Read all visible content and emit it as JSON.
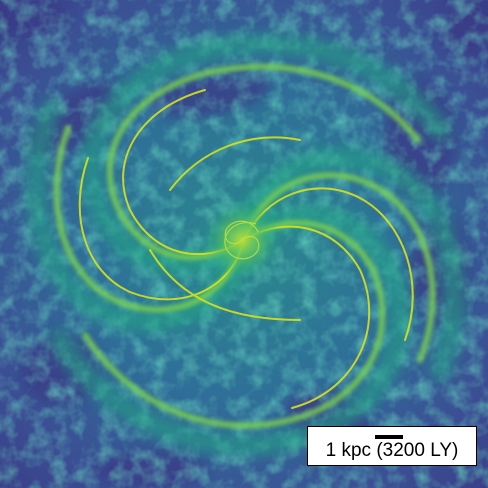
{
  "image": {
    "subject": "spiral-galaxy-gas-density-map",
    "colormap": [
      "#3b2f7e",
      "#3d5b9c",
      "#2a8a8c",
      "#22a884",
      "#7ad151",
      "#d8e219"
    ]
  },
  "scale_bar": {
    "label": "1 kpc (3200 LY)"
  }
}
